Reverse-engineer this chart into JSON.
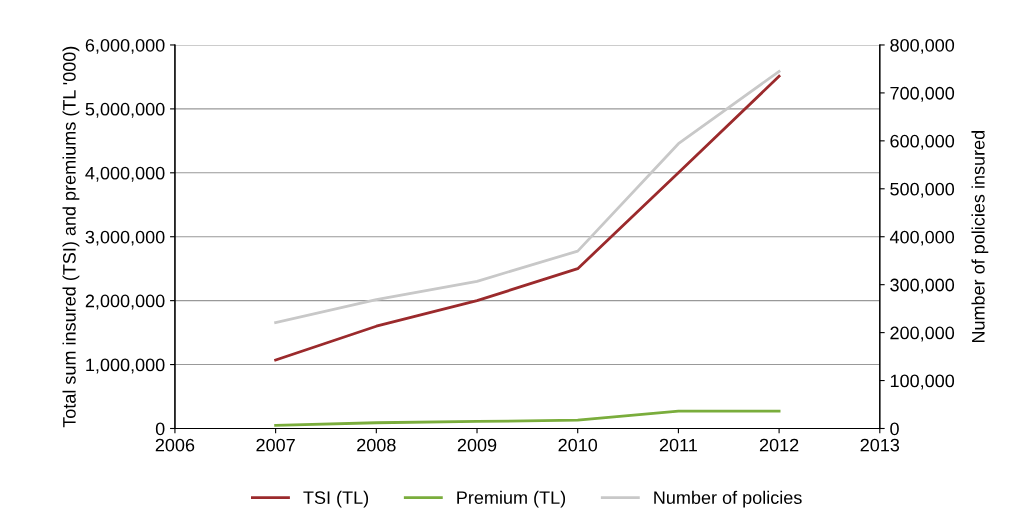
{
  "chart_data": {
    "type": "line",
    "ylabel": "Total sum insured (TSI) and premiums (TL '000)",
    "y2label": "Number of policies insured",
    "x": [
      2007,
      2008,
      2009,
      2010,
      2011,
      2012
    ],
    "series": [
      {
        "name": "TSI (TL)",
        "color": "#9b2a2c",
        "values": [
          1070000,
          1600000,
          2000000,
          2500000,
          4000000,
          5510000
        ]
      },
      {
        "name": "Premium (TL)",
        "color": "#7aad3c",
        "values": [
          50000,
          90000,
          110000,
          130000,
          270000,
          270000
        ]
      },
      {
        "name": "Number of policies",
        "color": "#c8c8c8",
        "axis": "y2",
        "values": [
          221000,
          269000,
          307000,
          370000,
          594000,
          745000
        ]
      }
    ],
    "xlim": [
      2006,
      2013
    ],
    "xticks": [
      2006,
      2007,
      2008,
      2009,
      2010,
      2011,
      2012,
      2013
    ],
    "ylim": [
      0,
      6000000
    ],
    "yticks": [
      {
        "value": 0,
        "label": "0"
      },
      {
        "value": 1000000,
        "label": "1,000,000"
      },
      {
        "value": 2000000,
        "label": "2,000,000"
      },
      {
        "value": 3000000,
        "label": "3,000,000"
      },
      {
        "value": 4000000,
        "label": "4,000,000"
      },
      {
        "value": 5000000,
        "label": "5,000,000"
      },
      {
        "value": 6000000,
        "label": "6,000,000"
      }
    ],
    "y2lim": [
      0,
      800000
    ],
    "y2ticks": [
      {
        "value": 0,
        "label": "0"
      },
      {
        "value": 100000,
        "label": "100,000"
      },
      {
        "value": 200000,
        "label": "200,000"
      },
      {
        "value": 300000,
        "label": "300,000"
      },
      {
        "value": 400000,
        "label": "400,000"
      },
      {
        "value": 500000,
        "label": "500,000"
      },
      {
        "value": 600000,
        "label": "600,000"
      },
      {
        "value": 700000,
        "label": "700,000"
      },
      {
        "value": 800000,
        "label": "800,000"
      }
    ],
    "grid": "y",
    "legend": "bottom",
    "marker": "none",
    "line_style": "solid"
  }
}
